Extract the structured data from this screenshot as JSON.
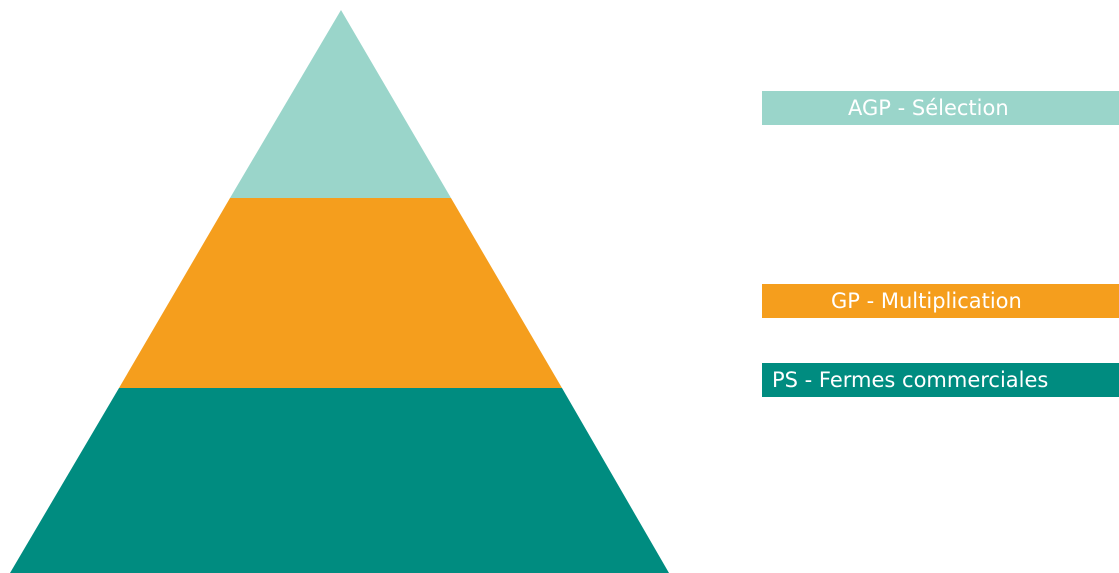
{
  "tiers": [
    {
      "label": "AGP - Sélection",
      "color": "#9ad5ca"
    },
    {
      "label": "GP - Multiplication",
      "color": "#f59e1d"
    },
    {
      "label": "PS - Fermes commerciales",
      "color": "#008c80"
    }
  ]
}
